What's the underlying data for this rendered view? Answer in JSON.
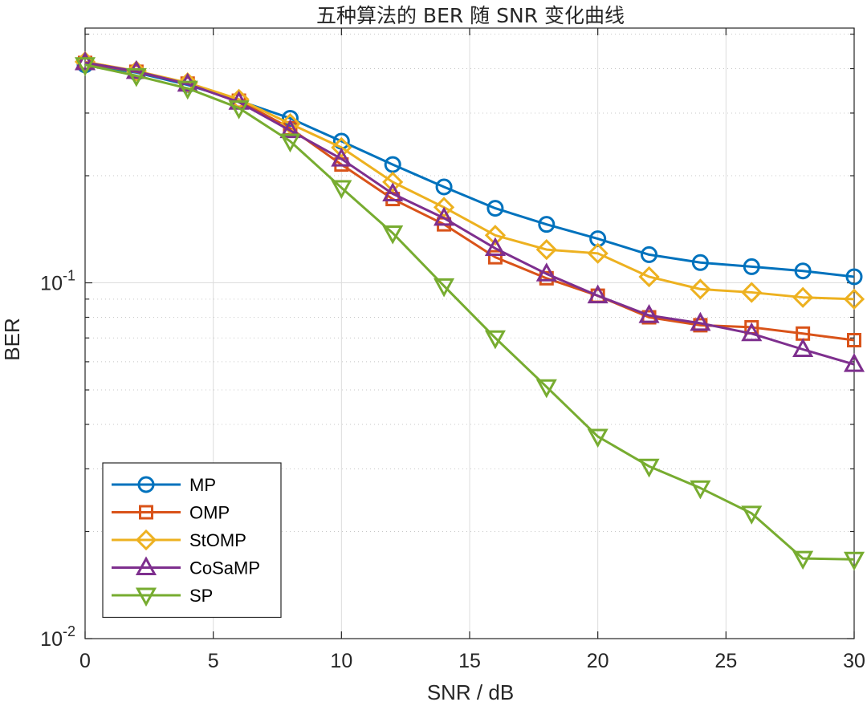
{
  "chart_data": {
    "type": "line",
    "title": "五种算法的 BER 随 SNR 变化曲线",
    "xlabel": "SNR / dB",
    "ylabel": "BER",
    "xscale": "linear",
    "yscale": "log",
    "xlim": [
      0,
      30
    ],
    "ylim": [
      0.01,
      0.52
    ],
    "xticks": [
      0,
      5,
      10,
      15,
      20,
      25,
      30
    ],
    "xtick_labels": [
      "0",
      "5",
      "10",
      "15",
      "20",
      "25",
      "30"
    ],
    "yticks": [
      0.01,
      0.1
    ],
    "ytick_labels": [
      {
        "base": "10",
        "exp": "-2"
      },
      {
        "base": "10",
        "exp": "-1"
      }
    ],
    "grid": true,
    "legend_position": "bottom-left",
    "x": [
      0,
      2,
      4,
      6,
      8,
      10,
      12,
      14,
      16,
      18,
      20,
      22,
      24,
      26,
      28,
      30
    ],
    "series": [
      {
        "name": "MP",
        "marker": "circle",
        "color": "#0072BD",
        "values": [
          0.41,
          0.39,
          0.36,
          0.325,
          0.29,
          0.25,
          0.215,
          0.186,
          0.162,
          0.146,
          0.133,
          0.12,
          0.114,
          0.111,
          0.108,
          0.104
        ]
      },
      {
        "name": "OMP",
        "marker": "square",
        "color": "#D95319",
        "values": [
          0.415,
          0.392,
          0.363,
          0.325,
          0.272,
          0.215,
          0.172,
          0.146,
          0.118,
          0.103,
          0.092,
          0.08,
          0.076,
          0.075,
          0.072,
          0.069
        ]
      },
      {
        "name": "StOMP",
        "marker": "diamond",
        "color": "#EDB120",
        "values": [
          0.418,
          0.394,
          0.365,
          0.328,
          0.28,
          0.24,
          0.192,
          0.163,
          0.136,
          0.124,
          0.121,
          0.104,
          0.096,
          0.094,
          0.091,
          0.09
        ]
      },
      {
        "name": "CoSaMP",
        "marker": "triangle-up",
        "color": "#7E2F8E",
        "values": [
          0.416,
          0.393,
          0.362,
          0.322,
          0.268,
          0.223,
          0.178,
          0.152,
          0.125,
          0.106,
          0.092,
          0.081,
          0.077,
          0.072,
          0.065,
          0.059
        ]
      },
      {
        "name": "SP",
        "marker": "triangle-down",
        "color": "#77AC30",
        "values": [
          0.41,
          0.382,
          0.352,
          0.31,
          0.25,
          0.185,
          0.138,
          0.098,
          0.07,
          0.051,
          0.037,
          0.0305,
          0.0265,
          0.0225,
          0.0168,
          0.0167
        ]
      }
    ]
  }
}
